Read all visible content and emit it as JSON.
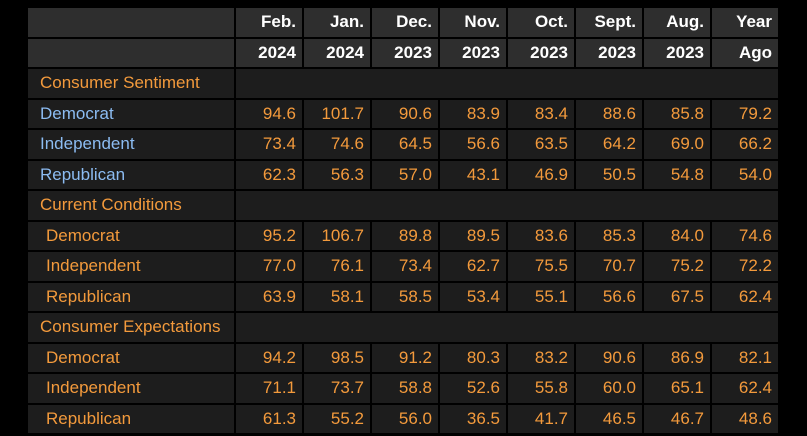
{
  "header": {
    "months": [
      "Feb.",
      "Jan.",
      "Dec.",
      "Nov.",
      "Oct.",
      "Sept.",
      "Aug.",
      "Year"
    ],
    "years": [
      "2024",
      "2024",
      "2023",
      "2023",
      "2023",
      "2023",
      "2023",
      "Ago"
    ]
  },
  "sections": [
    {
      "title": "Consumer Sentiment",
      "style": "blue",
      "rows": [
        {
          "label": "Democrat",
          "values": [
            "94.6",
            "101.7",
            "90.6",
            "83.9",
            "83.4",
            "88.6",
            "85.8",
            "79.2"
          ]
        },
        {
          "label": "Independent",
          "values": [
            "73.4",
            "74.6",
            "64.5",
            "56.6",
            "63.5",
            "64.2",
            "69.0",
            "66.2"
          ]
        },
        {
          "label": "Republican",
          "values": [
            "62.3",
            "56.3",
            "57.0",
            "43.1",
            "46.9",
            "50.5",
            "54.8",
            "54.0"
          ]
        }
      ]
    },
    {
      "title": "Current Conditions",
      "style": "orange",
      "rows": [
        {
          "label": "Democrat",
          "values": [
            "95.2",
            "106.7",
            "89.8",
            "89.5",
            "83.6",
            "85.3",
            "84.0",
            "74.6"
          ]
        },
        {
          "label": "Independent",
          "values": [
            "77.0",
            "76.1",
            "73.4",
            "62.7",
            "75.5",
            "70.7",
            "75.2",
            "72.2"
          ]
        },
        {
          "label": "Republican",
          "values": [
            "63.9",
            "58.1",
            "58.5",
            "53.4",
            "55.1",
            "56.6",
            "67.5",
            "62.4"
          ]
        }
      ]
    },
    {
      "title": "Consumer Expectations",
      "style": "orange",
      "rows": [
        {
          "label": "Democrat",
          "values": [
            "94.2",
            "98.5",
            "91.2",
            "80.3",
            "83.2",
            "90.6",
            "86.9",
            "82.1"
          ]
        },
        {
          "label": "Independent",
          "values": [
            "71.1",
            "73.7",
            "58.8",
            "52.6",
            "55.8",
            "60.0",
            "65.1",
            "62.4"
          ]
        },
        {
          "label": "Republican",
          "values": [
            "61.3",
            "55.2",
            "56.0",
            "36.5",
            "41.7",
            "46.5",
            "46.7",
            "48.6"
          ]
        }
      ]
    }
  ]
}
